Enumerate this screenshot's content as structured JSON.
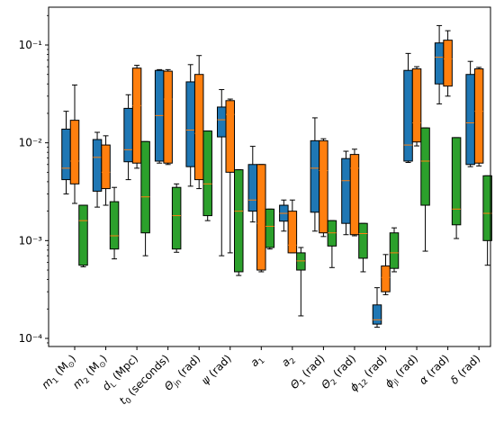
{
  "chart_data": {
    "type": "box",
    "yscale": "log",
    "ylim": [
      9e-05,
      0.22
    ],
    "y_tick_labels": [
      "10⁻⁴",
      "10⁻³",
      "10⁻²",
      "10⁻¹"
    ],
    "y_tick_values": [
      0.0001,
      0.001,
      0.01,
      0.1
    ],
    "categories": [
      {
        "main": "m",
        "sub": "1",
        "rest": " (M",
        "sub2": "⊙",
        "end": ")"
      },
      {
        "main": "m",
        "sub": "2",
        "rest": " (M",
        "sub2": "⊙",
        "end": ")"
      },
      {
        "main": "d",
        "sub": "L",
        "rest": " (Mpc)",
        "sub2": "",
        "end": ""
      },
      {
        "main": "t",
        "sub": "0",
        "rest": " (seconds)",
        "sub2": "",
        "end": ""
      },
      {
        "main": "Θ",
        "sub": "jn",
        "rest": " (rad)",
        "sub2": "",
        "end": ""
      },
      {
        "main": "ψ",
        "sub": "",
        "rest": " (rad)",
        "sub2": "",
        "end": ""
      },
      {
        "main": "a",
        "sub": "1",
        "rest": "",
        "sub2": "",
        "end": ""
      },
      {
        "main": "a",
        "sub": "2",
        "rest": "",
        "sub2": "",
        "end": ""
      },
      {
        "main": "Θ",
        "sub": "1",
        "rest": " (rad)",
        "sub2": "",
        "end": ""
      },
      {
        "main": "Θ",
        "sub": "2",
        "rest": " (rad)",
        "sub2": "",
        "end": ""
      },
      {
        "main": "ϕ",
        "sub": "12",
        "rest": " (rad)",
        "sub2": "",
        "end": ""
      },
      {
        "main": "ϕ",
        "sub": "jl",
        "rest": " (rad)",
        "sub2": "",
        "end": ""
      },
      {
        "main": "α",
        "sub": "",
        "rest": " (rad)",
        "sub2": "",
        "end": ""
      },
      {
        "main": "δ",
        "sub": "",
        "rest": " (rad)",
        "sub2": "",
        "end": ""
      }
    ],
    "series": [
      {
        "color": "#1f77b4",
        "boxes": [
          {
            "whislo": 0.003,
            "q1": 0.0042,
            "med": 0.0055,
            "q3": 0.0138,
            "whishi": 0.021
          },
          {
            "whislo": 0.0022,
            "q1": 0.0032,
            "med": 0.0071,
            "q3": 0.0108,
            "whishi": 0.0128
          },
          {
            "whislo": 0.0042,
            "q1": 0.0064,
            "med": 0.0085,
            "q3": 0.0225,
            "whishi": 0.031
          },
          {
            "whislo": 0.0062,
            "q1": 0.0065,
            "med": 0.019,
            "q3": 0.055,
            "whishi": 0.056
          },
          {
            "whislo": 0.0036,
            "q1": 0.0057,
            "med": 0.0135,
            "q3": 0.042,
            "whishi": 0.063
          },
          {
            "whislo": 0.0007,
            "q1": 0.0115,
            "med": 0.0172,
            "q3": 0.0232,
            "whishi": 0.035
          },
          {
            "whislo": 0.00155,
            "q1": 0.002,
            "med": 0.0026,
            "q3": 0.006,
            "whishi": 0.0092
          },
          {
            "whislo": 0.00125,
            "q1": 0.00158,
            "med": 0.0019,
            "q3": 0.0023,
            "whishi": 0.0026
          },
          {
            "whislo": 0.00125,
            "q1": 0.00195,
            "med": 0.0055,
            "q3": 0.0105,
            "whishi": 0.018
          },
          {
            "whislo": 0.00115,
            "q1": 0.0015,
            "med": 0.0041,
            "q3": 0.0069,
            "whishi": 0.0082
          },
          {
            "whislo": 0.00013,
            "q1": 0.00014,
            "med": 0.000155,
            "q3": 0.00022,
            "whishi": 0.00033
          },
          {
            "whislo": 0.0063,
            "q1": 0.0065,
            "med": 0.0095,
            "q3": 0.055,
            "whishi": 0.082
          },
          {
            "whislo": 0.025,
            "q1": 0.04,
            "med": 0.075,
            "q3": 0.105,
            "whishi": 0.158
          },
          {
            "whislo": 0.0057,
            "q1": 0.006,
            "med": 0.016,
            "q3": 0.05,
            "whishi": 0.068
          }
        ]
      },
      {
        "color": "#ff7f0e",
        "boxes": [
          {
            "whislo": 0.0024,
            "q1": 0.0038,
            "med": 0.0065,
            "q3": 0.017,
            "whishi": 0.039
          },
          {
            "whislo": 0.0023,
            "q1": 0.0034,
            "med": 0.005,
            "q3": 0.0095,
            "whishi": 0.0118
          },
          {
            "whislo": 0.0055,
            "q1": 0.0062,
            "med": 0.024,
            "q3": 0.058,
            "whishi": 0.062
          },
          {
            "whislo": 0.006,
            "q1": 0.0062,
            "med": 0.028,
            "q3": 0.054,
            "whishi": 0.056
          },
          {
            "whislo": 0.0034,
            "q1": 0.0042,
            "med": 0.0125,
            "q3": 0.05,
            "whishi": 0.078
          },
          {
            "whislo": 0.00075,
            "q1": 0.005,
            "med": 0.0195,
            "q3": 0.027,
            "whishi": 0.028
          },
          {
            "whislo": 0.00048,
            "q1": 0.0005,
            "med": 0.0015,
            "q3": 0.006,
            "whishi": 0.006
          },
          {
            "whislo": 0.00075,
            "q1": 0.00075,
            "med": 0.0009,
            "q3": 0.002,
            "whishi": 0.0026
          },
          {
            "whislo": 0.0011,
            "q1": 0.0012,
            "med": 0.0052,
            "q3": 0.0105,
            "whishi": 0.011
          },
          {
            "whislo": 0.00112,
            "q1": 0.00115,
            "med": 0.0055,
            "q3": 0.0076,
            "whishi": 0.0086
          },
          {
            "whislo": 0.00028,
            "q1": 0.0003,
            "med": 0.00042,
            "q3": 0.00055,
            "whishi": 0.00072
          },
          {
            "whislo": 0.0093,
            "q1": 0.0102,
            "med": 0.016,
            "q3": 0.057,
            "whishi": 0.06
          },
          {
            "whislo": 0.03,
            "q1": 0.038,
            "med": 0.072,
            "q3": 0.112,
            "whishi": 0.14
          },
          {
            "whislo": 0.0058,
            "q1": 0.0062,
            "med": 0.021,
            "q3": 0.057,
            "whishi": 0.059
          }
        ]
      },
      {
        "color": "#2ca02c",
        "boxes": [
          {
            "whislo": 0.00054,
            "q1": 0.00056,
            "med": 0.0016,
            "q3": 0.0023,
            "whishi": 0.0023
          },
          {
            "whislo": 0.00065,
            "q1": 0.00082,
            "med": 0.00112,
            "q3": 0.0025,
            "whishi": 0.0035
          },
          {
            "whislo": 0.0007,
            "q1": 0.0012,
            "med": 0.0028,
            "q3": 0.0103,
            "whishi": 0.0103
          },
          {
            "whislo": 0.00076,
            "q1": 0.00082,
            "med": 0.0018,
            "q3": 0.0035,
            "whishi": 0.0038
          },
          {
            "whislo": 0.0016,
            "q1": 0.0018,
            "med": 0.0038,
            "q3": 0.0132,
            "whishi": 0.0132
          },
          {
            "whislo": 0.00044,
            "q1": 0.00048,
            "med": 0.002,
            "q3": 0.0053,
            "whishi": 0.0053
          },
          {
            "whislo": 0.00082,
            "q1": 0.00085,
            "med": 0.0014,
            "q3": 0.0021,
            "whishi": 0.0021
          },
          {
            "whislo": 0.00017,
            "q1": 0.0005,
            "med": 0.00062,
            "q3": 0.00075,
            "whishi": 0.00085
          },
          {
            "whislo": 0.00053,
            "q1": 0.00088,
            "med": 0.0012,
            "q3": 0.0016,
            "whishi": 0.0016
          },
          {
            "whislo": 0.00048,
            "q1": 0.00066,
            "med": 0.00118,
            "q3": 0.0015,
            "whishi": 0.0015
          },
          {
            "whislo": 0.00048,
            "q1": 0.00052,
            "med": 0.00075,
            "q3": 0.0012,
            "whishi": 0.00135
          },
          {
            "whislo": 0.00078,
            "q1": 0.0023,
            "med": 0.0065,
            "q3": 0.0142,
            "whishi": 0.0142
          },
          {
            "whislo": 0.00105,
            "q1": 0.00145,
            "med": 0.0021,
            "q3": 0.0113,
            "whishi": 0.0113
          },
          {
            "whislo": 0.00056,
            "q1": 0.001,
            "med": 0.0019,
            "q3": 0.0046,
            "whishi": 0.0046
          }
        ]
      }
    ]
  }
}
